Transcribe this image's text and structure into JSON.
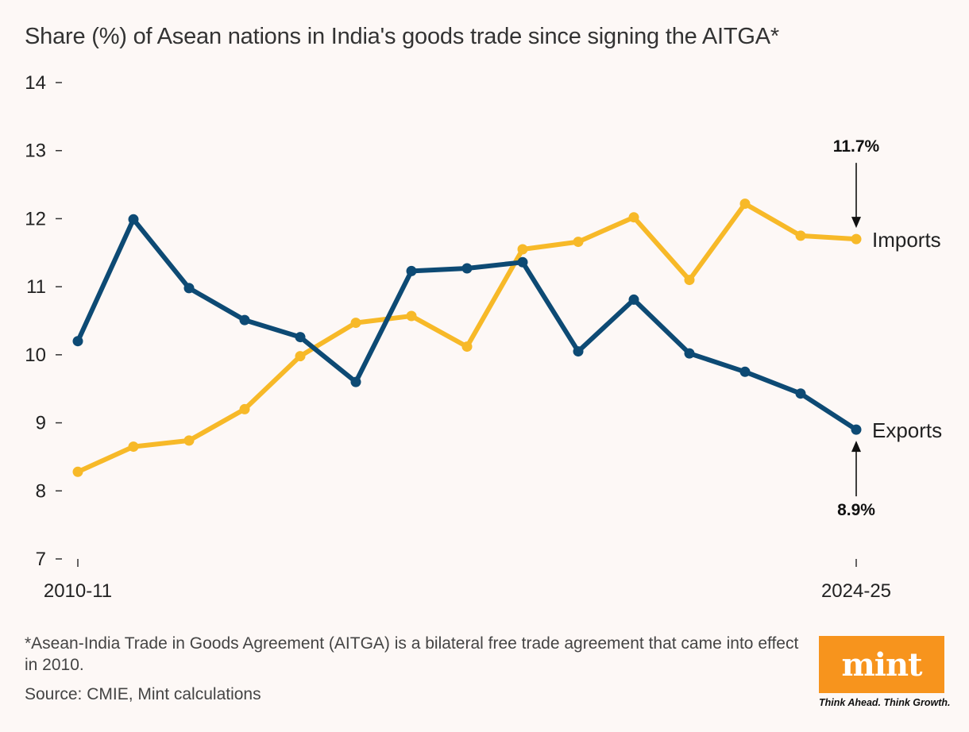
{
  "title": "Share (%) of Asean nations in India's goods trade since signing the AITGA*",
  "chart_data": {
    "type": "line",
    "title": "Share (%) of Asean nations in India's goods trade since signing the AITGA*",
    "xlabel": "",
    "ylabel": "",
    "ylim": [
      7,
      14
    ],
    "yticks": [
      "14",
      "13",
      "12",
      "11",
      "10",
      "9",
      "8",
      "7"
    ],
    "x_tick_labels": [
      "2010-11",
      "2024-25"
    ],
    "x": [
      "2010-11",
      "2011-12",
      "2012-13",
      "2013-14",
      "2014-15",
      "2015-16",
      "2016-17",
      "2017-18",
      "2018-19",
      "2019-20",
      "2020-21",
      "2021-22",
      "2022-23",
      "2023-24",
      "2024-25"
    ],
    "series": [
      {
        "name": "Imports",
        "color": "#f7b928",
        "values": [
          8.28,
          8.65,
          8.74,
          9.2,
          9.98,
          10.47,
          10.57,
          10.12,
          11.55,
          11.66,
          12.02,
          11.1,
          12.22,
          11.75,
          11.7
        ]
      },
      {
        "name": "Exports",
        "color": "#0d4a74",
        "values": [
          10.2,
          11.99,
          10.98,
          10.51,
          10.26,
          9.6,
          11.23,
          11.27,
          11.36,
          10.05,
          10.81,
          10.02,
          9.75,
          9.43,
          8.9
        ]
      }
    ],
    "annotations": [
      {
        "series": "Imports",
        "label": "11.7%"
      },
      {
        "series": "Exports",
        "label": "8.9%"
      }
    ]
  },
  "footnote": "*Asean-India Trade in Goods Agreement (AITGA) is a bilateral free trade agreement that came into effect in 2010.",
  "source": "Source: CMIE, Mint calculations",
  "logo": {
    "word": "mint",
    "tagline": "Think Ahead. Think Growth.",
    "color": "#f7941d"
  }
}
